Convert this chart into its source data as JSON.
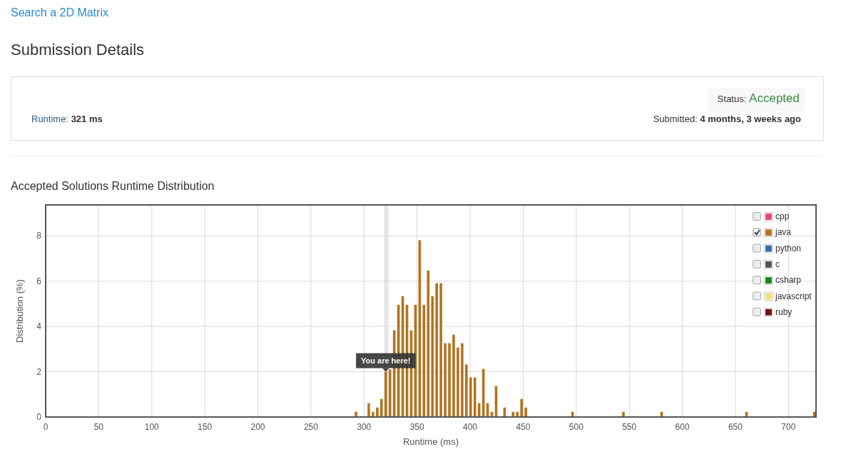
{
  "chart_data": {
    "type": "bar",
    "title": "Accepted Solutions Runtime Distribution",
    "xlabel": "Runtime (ms)",
    "ylabel": "Distribution (%)",
    "x": [
      292.5,
      304.5,
      308.5,
      312.5,
      316.5,
      320.5,
      324.5,
      328.5,
      332.5,
      336.5,
      340.5,
      344.5,
      348.5,
      352.5,
      356.5,
      360.5,
      364.5,
      368.5,
      372.5,
      376.5,
      380.5,
      384.5,
      388.5,
      392.5,
      396.5,
      400.5,
      404.5,
      408.5,
      412.5,
      416.5,
      420.5,
      424.5,
      432.5,
      440.5,
      444.5,
      448.5,
      452.5,
      496.5,
      544.5,
      580.5,
      660.5,
      724.5
    ],
    "series": [
      {
        "name": "cpp",
        "color": "#e8487f",
        "values": [
          null,
          null,
          null,
          null,
          null,
          null,
          null,
          null,
          null,
          null,
          null,
          null,
          null,
          null,
          null,
          null,
          null,
          null,
          null,
          null,
          null,
          null,
          null,
          null,
          null,
          null,
          null,
          null,
          null,
          null,
          null,
          null,
          null,
          null,
          null,
          null,
          null,
          null,
          null,
          null,
          null,
          null
        ]
      },
      {
        "name": "java",
        "color": "#b3731f",
        "values": [
          0.23,
          0.61,
          0.23,
          0.42,
          0.8,
          2.0,
          2.1,
          3.83,
          4.96,
          5.34,
          4.96,
          3.83,
          4.96,
          7.81,
          4.96,
          6.47,
          5.34,
          5.91,
          5.91,
          3.26,
          3.26,
          3.64,
          3.07,
          3.26,
          2.32,
          1.75,
          1.75,
          0.61,
          2.13,
          0.61,
          0.23,
          1.37,
          0.42,
          0.23,
          0.23,
          0.8,
          0.42,
          0.23,
          0.23,
          0.23,
          0.23,
          0.23
        ]
      },
      {
        "name": "python",
        "color": "#3b6ea8",
        "values": [
          null,
          null,
          null,
          null,
          null,
          null,
          null,
          null,
          null,
          null,
          null,
          null,
          null,
          null,
          null,
          null,
          null,
          null,
          null,
          null,
          null,
          null,
          null,
          null,
          null,
          null,
          null,
          null,
          null,
          null,
          null,
          null,
          null,
          null,
          null,
          null,
          null,
          null,
          null,
          null,
          null,
          null
        ]
      },
      {
        "name": "c",
        "color": "#555555",
        "values": [
          null,
          null,
          null,
          null,
          null,
          null,
          null,
          null,
          null,
          null,
          null,
          null,
          null,
          null,
          null,
          null,
          null,
          null,
          null,
          null,
          null,
          null,
          null,
          null,
          null,
          null,
          null,
          null,
          null,
          null,
          null,
          null,
          null,
          null,
          null,
          null,
          null,
          null,
          null,
          null,
          null,
          null
        ]
      },
      {
        "name": "csharp",
        "color": "#17871b",
        "values": [
          null,
          null,
          null,
          null,
          null,
          null,
          null,
          null,
          null,
          null,
          null,
          null,
          null,
          null,
          null,
          null,
          null,
          null,
          null,
          null,
          null,
          null,
          null,
          null,
          null,
          null,
          null,
          null,
          null,
          null,
          null,
          null,
          null,
          null,
          null,
          null,
          null,
          null,
          null,
          null,
          null,
          null
        ]
      },
      {
        "name": "javascript",
        "color": "#f2e36b",
        "values": [
          null,
          null,
          null,
          null,
          null,
          null,
          null,
          null,
          null,
          null,
          null,
          null,
          null,
          null,
          null,
          null,
          null,
          null,
          null,
          null,
          null,
          null,
          null,
          null,
          null,
          null,
          null,
          null,
          null,
          null,
          null,
          null,
          null,
          null,
          null,
          null,
          null,
          null,
          null,
          null,
          null,
          null
        ]
      },
      {
        "name": "ruby",
        "color": "#701616",
        "values": [
          null,
          null,
          null,
          null,
          null,
          null,
          null,
          null,
          null,
          null,
          null,
          null,
          null,
          null,
          null,
          null,
          null,
          null,
          null,
          null,
          null,
          null,
          null,
          null,
          null,
          null,
          null,
          null,
          null,
          null,
          null,
          null,
          null,
          null,
          null,
          null,
          null,
          null,
          null,
          null,
          null,
          null
        ]
      }
    ],
    "xlim": [
      0,
      726
    ],
    "ylim": [
      0,
      9.37
    ],
    "xticks": [
      0,
      50,
      100,
      150,
      200,
      250,
      300,
      350,
      400,
      450,
      500,
      550,
      600,
      650,
      700
    ],
    "yticks": [
      0,
      2,
      4,
      6,
      8
    ],
    "grid": true,
    "legend": "top right",
    "bands": [
      {
        "axis": "x",
        "from": 319,
        "to": 323,
        "color": "#e6e6e6"
      }
    ],
    "annotations": [
      "Search a 2D Matrix",
      "Submission Details",
      "Status: Accepted",
      "Runtime: 321 ms",
      "Submitted: 4 months, 3 weeks ago",
      {
        "text": "You are here!",
        "x": 320.5,
        "y": 2.0
      }
    ]
  }
}
